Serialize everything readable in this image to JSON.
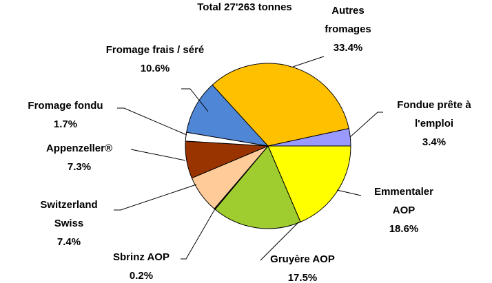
{
  "chart_data": {
    "type": "pie",
    "title": "Total 27'263 tonnes",
    "categories": [
      "Emmentaler AOP",
      "Gruyère AOP",
      "Sbrinz AOP",
      "Switzerland Swiss",
      "Appenzeller®",
      "Fromage fondu",
      "Fromage frais / séré",
      "Autres fromages",
      "Fondue prête à l'emploi"
    ],
    "values": [
      18.6,
      17.5,
      0.2,
      7.4,
      7.3,
      1.7,
      10.6,
      33.4,
      3.4
    ],
    "value_labels": [
      "18.6%",
      "17.5%",
      "0.2%",
      "7.4%",
      "7.3%",
      "1.7%",
      "10.6%",
      "33.4%",
      "3.4%"
    ],
    "colors": [
      "#ffff00",
      "#9fcc2e",
      "#3a3a3a",
      "#ffcc99",
      "#993300",
      "#ffffff",
      "#4f86d6",
      "#ffc000",
      "#9999ff"
    ]
  }
}
